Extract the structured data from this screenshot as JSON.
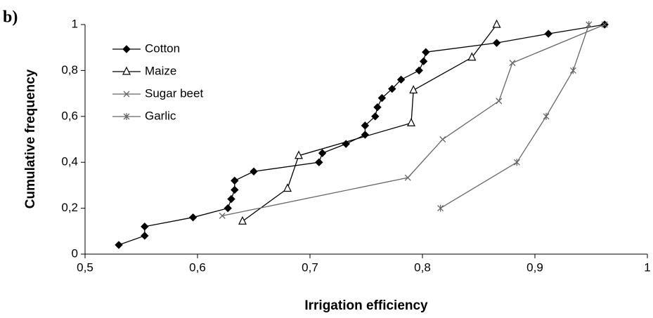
{
  "chart_data": {
    "type": "line",
    "panel_label": "b)",
    "x_label": "Irrigation efficiency",
    "y_label": "Cumulative frequency",
    "xlim": [
      0.5,
      1
    ],
    "ylim": [
      0,
      1
    ],
    "xticks": [
      {
        "value": 0.5,
        "label": "0,5"
      },
      {
        "value": 0.6,
        "label": "0,6"
      },
      {
        "value": 0.7,
        "label": "0,7"
      },
      {
        "value": 0.8,
        "label": "0,8"
      },
      {
        "value": 0.9,
        "label": "0,9"
      },
      1
    ],
    "yticks": [
      0,
      {
        "value": 0.2,
        "label": "0,2"
      },
      {
        "value": 0.4,
        "label": "0,4"
      },
      {
        "value": 0.6,
        "label": "0,6"
      },
      {
        "value": 0.8,
        "label": "0,8"
      },
      1
    ],
    "grid": false,
    "legend": "upper left",
    "series": [
      {
        "name": "Cotton",
        "color": "#000000",
        "marker": "diamond",
        "x": [
          0.53,
          0.553,
          0.553,
          0.596,
          0.627,
          0.63,
          0.633,
          0.633,
          0.65,
          0.708,
          0.711,
          0.732,
          0.749,
          0.749,
          0.758,
          0.76,
          0.764,
          0.773,
          0.781,
          0.797,
          0.801,
          0.803,
          0.866,
          0.912,
          0.962
        ],
        "values": [
          0.04,
          0.08,
          0.12,
          0.16,
          0.2,
          0.24,
          0.28,
          0.32,
          0.36,
          0.4,
          0.44,
          0.48,
          0.52,
          0.56,
          0.6,
          0.64,
          0.68,
          0.72,
          0.76,
          0.8,
          0.84,
          0.88,
          0.92,
          0.96,
          1.0
        ]
      },
      {
        "name": "Maize",
        "color": "#000000",
        "marker": "triangle",
        "x": [
          0.64,
          0.68,
          0.69,
          0.79,
          0.792,
          0.844,
          0.866
        ],
        "values": [
          0.143,
          0.286,
          0.429,
          0.571,
          0.714,
          0.857,
          1.0
        ]
      },
      {
        "name": "Sugar beet",
        "color": "#666666",
        "marker": "x",
        "x": [
          0.622,
          0.787,
          0.818,
          0.868,
          0.88,
          0.962
        ],
        "values": [
          0.167,
          0.333,
          0.5,
          0.667,
          0.833,
          1.0
        ]
      },
      {
        "name": "Garlic",
        "color": "#666666",
        "marker": "asterisk",
        "x": [
          0.816,
          0.884,
          0.91,
          0.934,
          0.948
        ],
        "values": [
          0.2,
          0.4,
          0.6,
          0.8,
          1.0
        ]
      }
    ]
  }
}
